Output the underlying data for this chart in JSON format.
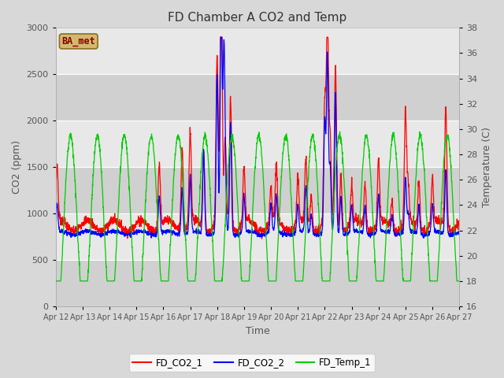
{
  "title": "FD Chamber A CO2 and Temp",
  "xlabel": "Time",
  "ylabel_left": "CO2 (ppm)",
  "ylabel_right": "Temperature (C)",
  "legend_label": "BA_met",
  "series_labels": [
    "FD_CO2_1",
    "FD_CO2_2",
    "FD_Temp_1"
  ],
  "colors": [
    "#ff0000",
    "#0000ff",
    "#00cc00"
  ],
  "co2_ylim": [
    0,
    3000
  ],
  "temp_ylim": [
    16,
    38
  ],
  "co2_yticks": [
    0,
    500,
    1000,
    1500,
    2000,
    2500,
    3000
  ],
  "temp_yticks": [
    16,
    18,
    20,
    22,
    24,
    26,
    28,
    30,
    32,
    34,
    36,
    38
  ],
  "xtick_labels": [
    "Apr 12",
    "Apr 13",
    "Apr 14",
    "Apr 15",
    "Apr 16",
    "Apr 17",
    "Apr 18",
    "Apr 19",
    "Apr 20",
    "Apr 21",
    "Apr 22",
    "Apr 23",
    "Apr 24",
    "Apr 25",
    "Apr 26",
    "Apr 27"
  ],
  "outer_bg": "#d8d8d8",
  "plot_bg": "#e8e8e8",
  "band_color": "#d0d0d0",
  "grid_color": "#ffffff",
  "font_color": "#555555",
  "title_color": "#333333",
  "legend_box_facecolor": "#d4b870",
  "legend_box_edgecolor": "#8b7020",
  "legend_text_color": "#8b0000",
  "line_width": 0.9
}
